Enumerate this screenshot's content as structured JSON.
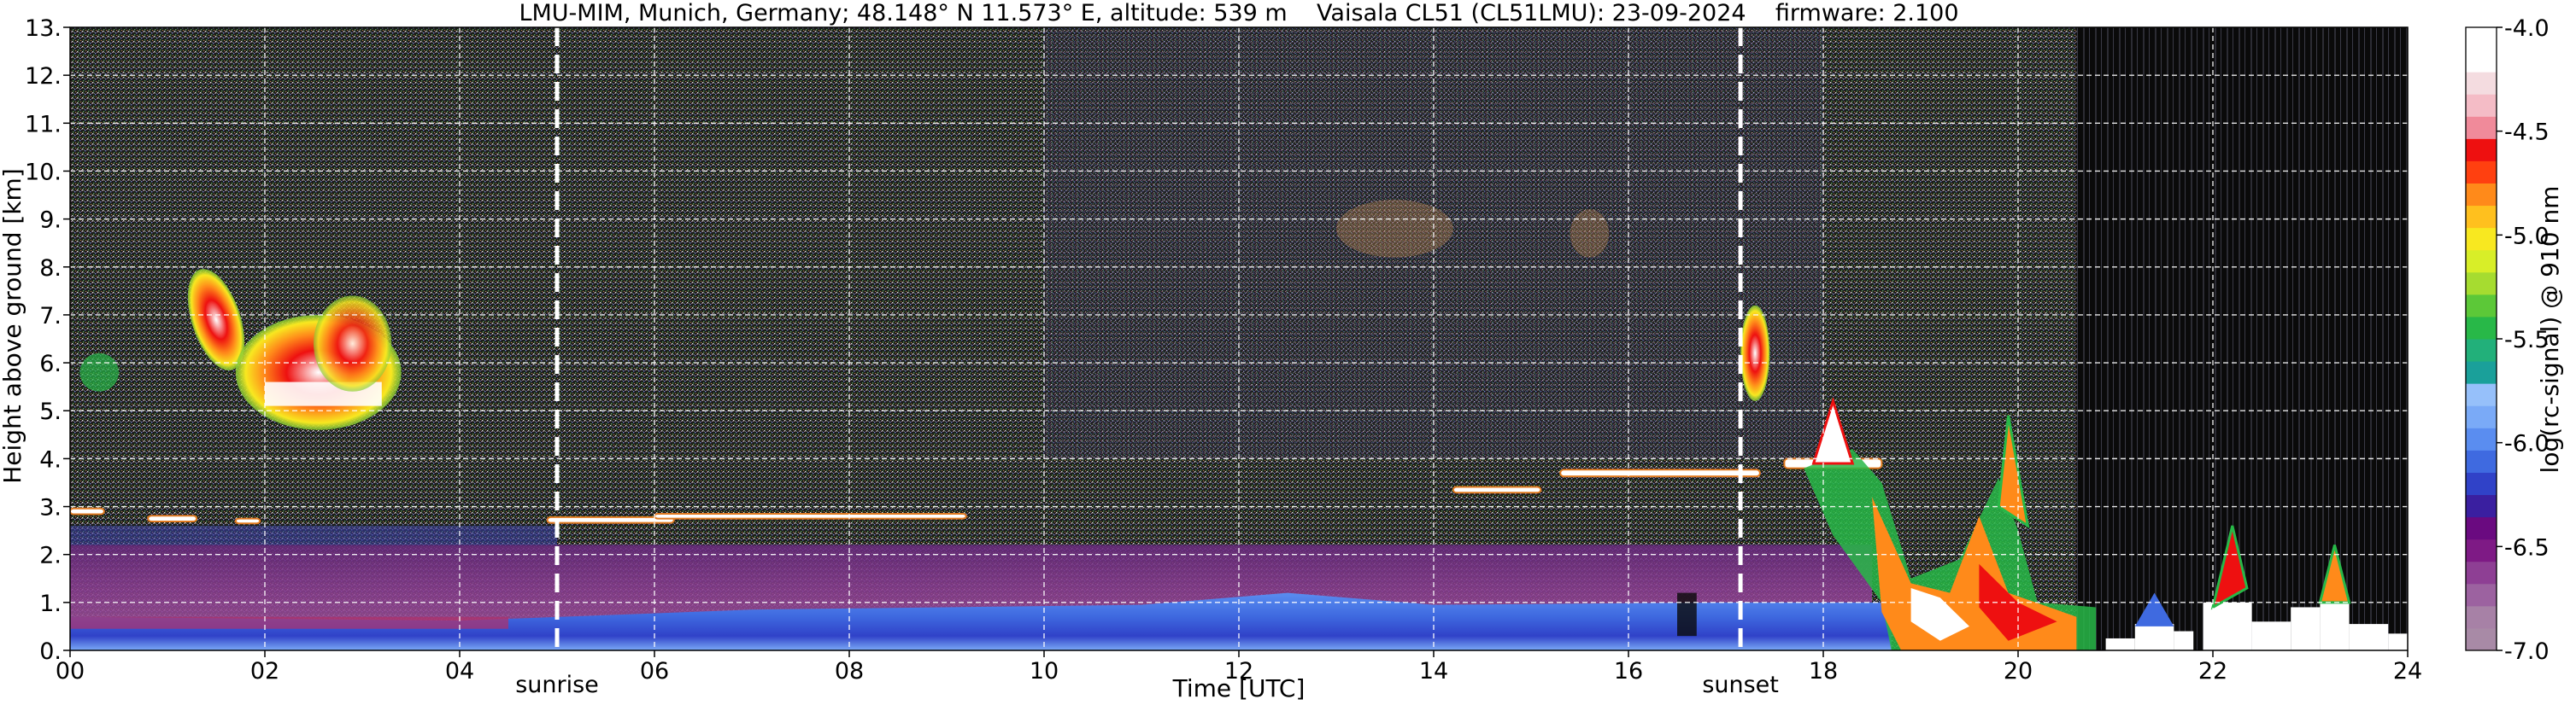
{
  "chart_data": {
    "type": "heatmap",
    "title": "LMU-MIM, Munich, Germany; 48.148° N 11.573° E, altitude: 539 m    Vaisala CL51 (CL51LMU): 23-09-2024    firmware: 2.100",
    "xlabel": "Time [UTC]",
    "ylabel": "Height above ground [km]",
    "colorbar_label": "log(rc-signal) @ 910 nm",
    "xlim": [
      0,
      24
    ],
    "ylim": [
      0,
      13
    ],
    "x_ticks": [
      0,
      2,
      4,
      6,
      8,
      10,
      12,
      14,
      16,
      18,
      20,
      22,
      24
    ],
    "x_tick_labels": [
      "00",
      "02",
      "04",
      "06",
      "08",
      "10",
      "12",
      "14",
      "16",
      "18",
      "20",
      "22",
      "24"
    ],
    "y_ticks": [
      0,
      1,
      2,
      3,
      4,
      5,
      6,
      7,
      8,
      9,
      10,
      11,
      12,
      13
    ],
    "y_tick_labels": [
      "0.",
      "1.",
      "2.",
      "3.",
      "4.",
      "5.",
      "6.",
      "7.",
      "8.",
      "9.",
      "10.",
      "11.",
      "12.",
      "13."
    ],
    "grid": true,
    "colorbar": {
      "range": [
        -7.0,
        -4.0
      ],
      "ticks": [
        -7.0,
        -6.5,
        -6.0,
        -5.5,
        -5.0,
        -4.5,
        -4.0
      ],
      "tick_labels": [
        "-7.0",
        "-6.5",
        "-6.0",
        "-5.5",
        "-5.0",
        "-4.5",
        "-4.0"
      ],
      "colors": [
        "#a88aa6",
        "#a781a6",
        "#9c62a0",
        "#8e3f94",
        "#7e1a85",
        "#6a0a80",
        "#3a1fa0",
        "#3042c8",
        "#3f6ae0",
        "#5a8df0",
        "#7aaaf7",
        "#96c0fa",
        "#1aa09a",
        "#22b07a",
        "#28b848",
        "#5cc838",
        "#a6dc30",
        "#d8ee28",
        "#f8e820",
        "#ffc01e",
        "#ff8a1a",
        "#ff4010",
        "#ee1010",
        "#f08a9a",
        "#f4bcc6",
        "#f4dce0",
        "#ffffff",
        "#ffffff"
      ]
    },
    "markers": [
      {
        "x": 5.0,
        "label": "sunrise"
      },
      {
        "x": 17.15,
        "label": "sunset"
      }
    ],
    "features": [
      {
        "kind": "cloud",
        "x": [
          1.25,
          1.75
        ],
        "y": [
          5.8,
          8.2
        ]
      },
      {
        "kind": "cloud",
        "x": [
          1.95,
          3.5
        ],
        "y": [
          4.6,
          7.5
        ]
      },
      {
        "kind": "cloud",
        "x": [
          17.2,
          17.45
        ],
        "y": [
          5.2,
          7.2
        ]
      },
      {
        "kind": "cloud-layer",
        "x": [
          0.0,
          1.5
        ],
        "y": [
          2.6,
          3.0
        ]
      },
      {
        "kind": "cloud-layer",
        "x": [
          4.9,
          9.2
        ],
        "y": [
          2.7,
          2.9
        ]
      },
      {
        "kind": "cloud-layer",
        "x": [
          14.2,
          17.3
        ],
        "y": [
          3.2,
          3.8
        ]
      },
      {
        "kind": "cloud",
        "x": [
          17.7,
          20.0
        ],
        "y": [
          1.3,
          5.2
        ]
      },
      {
        "kind": "rain",
        "x": [
          18.6,
          20.8
        ],
        "y": [
          0.0,
          2.0
        ]
      },
      {
        "kind": "low-cloud",
        "x": [
          20.8,
          24.0
        ],
        "y": [
          0.0,
          3.3
        ]
      }
    ]
  }
}
